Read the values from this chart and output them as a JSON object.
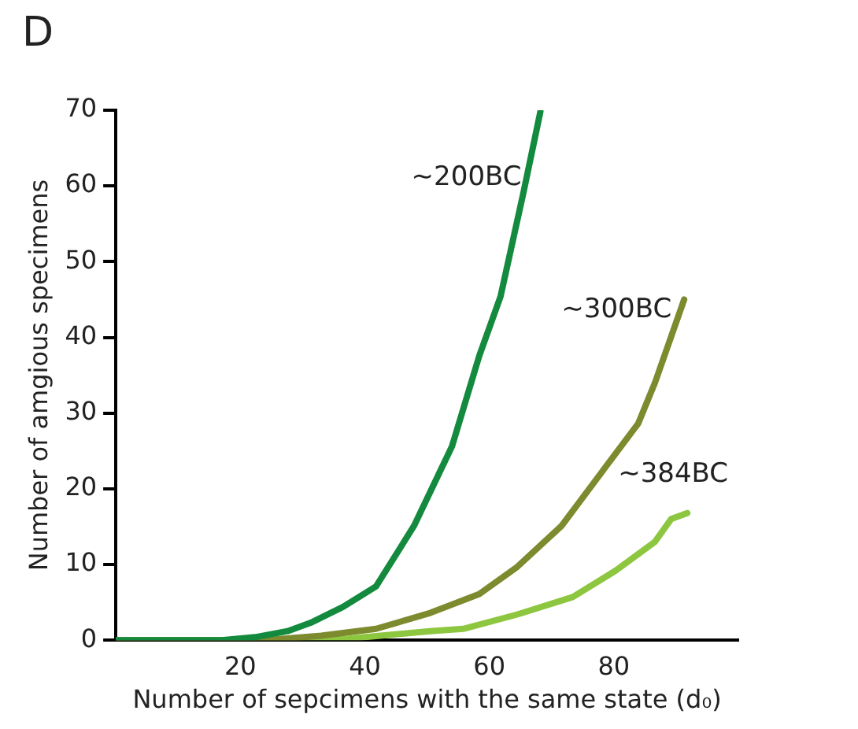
{
  "chart_data": {
    "type": "line",
    "title": "D",
    "xlabel": "Number of sepcimens with the same state (d₀)",
    "ylabel": "Number of amgious specimens",
    "xlim": [
      0,
      100
    ],
    "xticks": [
      20,
      40,
      60,
      80
    ],
    "ylim": [
      0,
      70
    ],
    "yticks": [
      0,
      10,
      20,
      30,
      40,
      50,
      60,
      70
    ],
    "grid": false,
    "legend": false,
    "marker": "none",
    "line_style": "solid",
    "series": [
      {
        "name": "~200BC",
        "color": "#138a3e",
        "x": [
          0,
          17,
          22.4,
          27.6,
          31.3,
          36.5,
          41.8,
          47.9,
          54,
          58.4,
          61.8,
          65.5,
          68.2
        ],
        "values": [
          0,
          0,
          0.4,
          1.2,
          2.3,
          4.4,
          7.1,
          15.1,
          25.6,
          37.6,
          45.4,
          59.2,
          69.8
        ]
      },
      {
        "name": "~300BC",
        "color": "#7d8a2e",
        "x": [
          0,
          24,
          33,
          41.8,
          50.5,
          58.4,
          64.5,
          71.6,
          78.7,
          83.9,
          86.6,
          91.3
        ],
        "values": [
          0,
          0,
          0.6,
          1.5,
          3.6,
          6.1,
          9.7,
          15.1,
          22.9,
          28.6,
          34,
          45
        ]
      },
      {
        "name": "~384BC",
        "color": "#8dc63f",
        "x": [
          0,
          29,
          37.4,
          50.5,
          55.8,
          64.5,
          73.4,
          80.3,
          86.6,
          89.2,
          91.8
        ],
        "values": [
          0,
          0,
          0.2,
          1.2,
          1.5,
          3.4,
          5.7,
          9.2,
          13,
          16,
          16.8
        ]
      }
    ]
  }
}
